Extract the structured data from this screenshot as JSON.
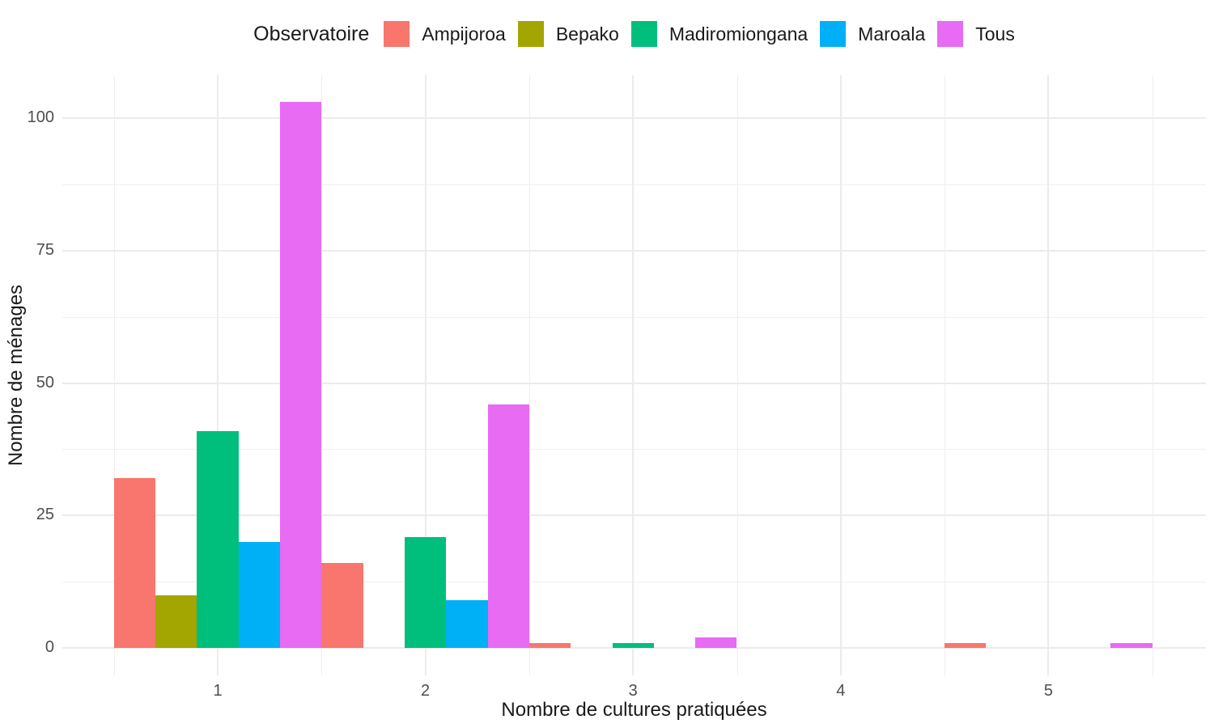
{
  "chart_data": {
    "type": "bar",
    "grouping": "dodged",
    "title": "",
    "legend_title": "Observatoire",
    "xlabel": "Nombre de cultures pratiquées",
    "ylabel": "Nombre de ménages",
    "categories": [
      1,
      2,
      3,
      4,
      5
    ],
    "series": [
      {
        "name": "Ampijoroa",
        "color": "#F8766D",
        "values": [
          32,
          16,
          1,
          0,
          1
        ]
      },
      {
        "name": "Bepako",
        "color": "#A3A500",
        "values": [
          10,
          0,
          0,
          0,
          0
        ]
      },
      {
        "name": "Madiromiongana",
        "color": "#00BF7D",
        "values": [
          41,
          21,
          1,
          0,
          0
        ]
      },
      {
        "name": "Maroala",
        "color": "#00B0F6",
        "values": [
          20,
          9,
          0,
          0,
          0
        ]
      },
      {
        "name": "Tous",
        "color": "#E76BF3",
        "values": [
          103,
          46,
          2,
          0,
          1
        ]
      }
    ],
    "x_ticks": [
      1,
      2,
      3,
      4,
      5
    ],
    "y_ticks": [
      0,
      25,
      50,
      75,
      100
    ],
    "y_minor_ticks": [
      12.5,
      37.5,
      62.5,
      87.5
    ],
    "x_minor_ticks": [
      0.5,
      1.5,
      2.5,
      3.5,
      4.5,
      5.5
    ],
    "xlim": [
      0.25,
      5.76
    ],
    "ylim": [
      0,
      108
    ],
    "bar_width": 0.2,
    "grid": "major+minor",
    "legend_position": "top",
    "background": "#FFFFFF",
    "grid_color": "#EBEBEB",
    "tick_label_color": "#4D4D4D",
    "text_color": "#1A1A1A"
  }
}
